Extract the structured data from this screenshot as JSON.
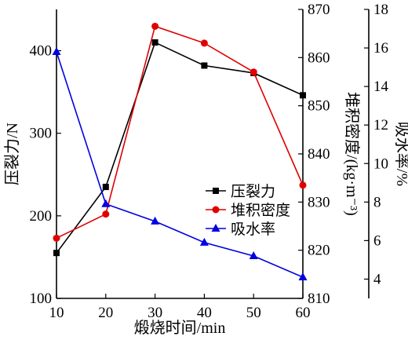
{
  "chart_data": {
    "type": "line",
    "x": [
      10,
      20,
      30,
      40,
      50,
      60
    ],
    "xlabel": "煅烧时间/min",
    "xlim": [
      10,
      60
    ],
    "x_ticks": [
      "10",
      "20",
      "30",
      "40",
      "50",
      "60"
    ],
    "axes": {
      "left": {
        "label": "压裂力/N",
        "lim": [
          100,
          450
        ],
        "ticks": [
          "100",
          "200",
          "300",
          "400"
        ]
      },
      "right1": {
        "label": "堆积密度/(kg·m⁻³)",
        "lim": [
          810,
          870
        ],
        "ticks": [
          "810",
          "820",
          "830",
          "840",
          "850",
          "860",
          "870"
        ]
      },
      "right2": {
        "label": "吸水率/%",
        "lim": [
          3,
          18
        ],
        "ticks": [
          "4",
          "6",
          "8",
          "10",
          "12",
          "14",
          "16",
          "18"
        ]
      }
    },
    "series": [
      {
        "name": "压裂力",
        "axis": "left",
        "color": "#000000",
        "marker": "square",
        "values": [
          155,
          235,
          410,
          382,
          373,
          346
        ]
      },
      {
        "name": "堆积密度",
        "axis": "right1",
        "color": "#e00000",
        "marker": "circle",
        "values": [
          822.5,
          827.5,
          866.5,
          863.0,
          857.0,
          833.5
        ]
      },
      {
        "name": "吸水率",
        "axis": "right2",
        "color": "#0000e0",
        "marker": "triangle",
        "values": [
          15.8,
          7.9,
          7.0,
          5.9,
          5.2,
          4.1
        ]
      }
    ],
    "legend_position": "center-right",
    "grid": false
  }
}
